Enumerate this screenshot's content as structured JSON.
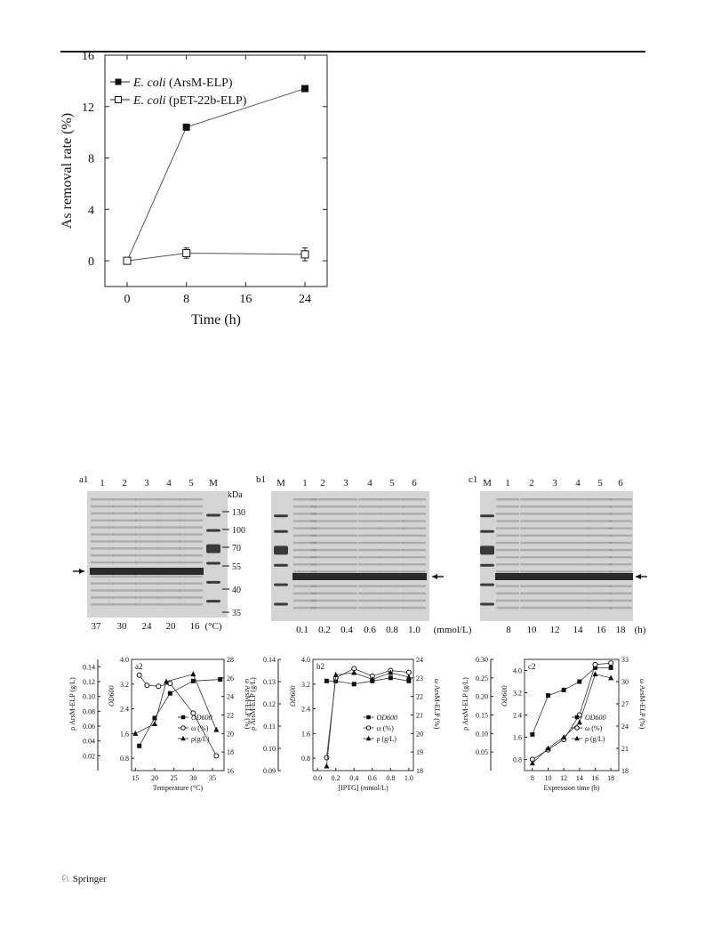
{
  "footer": {
    "publisher": "Springer",
    "logo_icon": "springer-horse-icon"
  },
  "chart_data": [
    {
      "id": "main",
      "type": "line",
      "ylabel": "As removal rate (%)",
      "xlabel": "Time (h)",
      "xlim": [
        -3,
        27
      ],
      "ylim": [
        -2,
        16
      ],
      "xticks": [
        "0",
        "8",
        "16",
        "24"
      ],
      "yticks": [
        "0",
        "4",
        "8",
        "12",
        "16"
      ],
      "series": [
        {
          "name_italic": "E. coli",
          "name_rest": "(ArsM-ELP)",
          "marker": "filled-square",
          "x": [
            0,
            8,
            24
          ],
          "y": [
            0,
            10.4,
            13.4
          ],
          "err": [
            0,
            0,
            0
          ]
        },
        {
          "name_italic": "E. coli",
          "name_rest": "(pET-22b-ELP)",
          "marker": "open-square",
          "x": [
            0,
            8,
            24
          ],
          "y": [
            0,
            0.6,
            0.5
          ],
          "err": [
            0,
            0.4,
            0.5
          ]
        }
      ]
    },
    {
      "id": "a2",
      "type": "line",
      "panel_label": "a2",
      "xlabel": "Temperature (°C)",
      "xlim": [
        14,
        38
      ],
      "xticks": [
        "15",
        "20",
        "25",
        "30",
        "35"
      ],
      "left_axis": {
        "label": "ρ ArsM-ELP (g/L)",
        "lim": [
          0,
          0.15
        ],
        "ticks": [
          "0.02",
          "0.04",
          "0.06",
          "0.08",
          "0.10",
          "0.12",
          "0.14"
        ]
      },
      "inner_axis": {
        "label": "OD600",
        "lim": [
          0.4,
          4.0
        ],
        "ticks": [
          "0.8",
          "1.6",
          "2.4",
          "3.2",
          "4.0"
        ]
      },
      "right_axis": {
        "label": "ω ArsM-ELP (%)",
        "lim": [
          16,
          28
        ],
        "ticks": [
          "16",
          "18",
          "20",
          "22",
          "24",
          "26",
          "28"
        ]
      },
      "legend": [
        "OD600",
        "ω (%)",
        "ρ(g/L)"
      ],
      "series": [
        {
          "name": "OD600",
          "marker": "filled-square",
          "x": [
            16,
            20,
            24,
            30,
            37
          ],
          "y_od": [
            1.2,
            2.1,
            2.9,
            3.3,
            3.35
          ]
        },
        {
          "name": "ω (%)",
          "marker": "open-circle",
          "x": [
            16,
            18,
            21,
            24,
            30,
            36
          ],
          "y_w": [
            26.3,
            25.2,
            25.1,
            25.4,
            22.2,
            17.6
          ]
        },
        {
          "name": "ρ(g/L)",
          "marker": "filled-triangle",
          "x": [
            15,
            20,
            23,
            30,
            36
          ],
          "y_rho": [
            0.05,
            0.063,
            0.12,
            0.13,
            0.055
          ]
        }
      ]
    },
    {
      "id": "b2",
      "type": "line",
      "panel_label": "b2",
      "xlabel": "[IPTG] (mmol/L)",
      "xlim": [
        -0.05,
        1.05
      ],
      "xticks": [
        "0.0",
        "0.2",
        "0.4",
        "0.6",
        "0.8",
        "1.0"
      ],
      "left_axis": {
        "label": "ρ ArsM-ELP (g/L)",
        "lim": [
          0.09,
          0.14
        ],
        "ticks": [
          "0.09",
          "0.10",
          "0.11",
          "0.12",
          "0.13",
          "0.14"
        ]
      },
      "inner_axis": {
        "label": "OD600",
        "lim": [
          0.4,
          4.0
        ],
        "ticks": [
          "0.8",
          "1.6",
          "2.4",
          "3.2",
          "4.0"
        ]
      },
      "right_axis": {
        "label": "ω ArsM-ELP (%)",
        "lim": [
          18,
          24
        ],
        "ticks": [
          "18",
          "19",
          "20",
          "21",
          "22",
          "23",
          "24"
        ]
      },
      "legend": [
        "OD600",
        "ω (%)",
        "ρ (g/L)"
      ],
      "series": [
        {
          "name": "OD600",
          "marker": "filled-square",
          "x": [
            0.1,
            0.2,
            0.4,
            0.6,
            0.8,
            1.0
          ],
          "y_od": [
            3.3,
            3.3,
            3.2,
            3.3,
            3.4,
            3.3
          ]
        },
        {
          "name": "ω (%)",
          "marker": "open-circle",
          "x": [
            0.1,
            0.2,
            0.4,
            0.6,
            0.8,
            1.0
          ],
          "y_w": [
            18.7,
            23.0,
            23.5,
            23.1,
            23.4,
            23.3
          ]
        },
        {
          "name": "ρ (g/L)",
          "marker": "filled-triangle",
          "x": [
            0.1,
            0.2,
            0.4,
            0.6,
            0.8,
            1.0
          ],
          "y_rho": [
            0.092,
            0.133,
            0.134,
            0.131,
            0.134,
            0.132
          ]
        }
      ]
    },
    {
      "id": "c2",
      "type": "line",
      "panel_label": "c2",
      "xlabel": "Expression time (h)",
      "xlim": [
        7,
        19
      ],
      "xticks": [
        "8",
        "10",
        "12",
        "14",
        "16",
        "18"
      ],
      "left_axis": {
        "label": "ρ ArsM-ELP (g/L)",
        "lim": [
          0,
          0.3
        ],
        "ticks": [
          "0.05",
          "0.10",
          "0.15",
          "0.20",
          "0.25",
          "0.30"
        ]
      },
      "inner_axis": {
        "label": "OD600",
        "lim": [
          0.4,
          4.4
        ],
        "ticks": [
          "0.8",
          "1.6",
          "2.4",
          "3.2",
          "4.0"
        ]
      },
      "right_axis": {
        "label": "ω ArsM-ELP (%)",
        "lim": [
          18,
          33
        ],
        "ticks": [
          "18",
          "21",
          "24",
          "27",
          "30",
          "33"
        ]
      },
      "legend": [
        "OD600",
        "ω (%)",
        "ρ (g/L)"
      ],
      "series": [
        {
          "name": "OD600",
          "marker": "filled-square",
          "x": [
            8,
            10,
            12,
            14,
            16,
            18
          ],
          "y_od": [
            1.7,
            3.1,
            3.3,
            3.6,
            4.1,
            4.1
          ]
        },
        {
          "name": "ω (%)",
          "marker": "open-circle",
          "x": [
            8,
            10,
            12,
            14,
            16,
            18
          ],
          "y_w": [
            19.5,
            20.8,
            22.2,
            25.5,
            32.3,
            32.5
          ]
        },
        {
          "name": "ρ (g/L)",
          "marker": "filled-triangle",
          "x": [
            8,
            10,
            12,
            14,
            16,
            18
          ],
          "y_rho": [
            0.02,
            0.06,
            0.09,
            0.13,
            0.26,
            0.25
          ]
        }
      ]
    }
  ],
  "gels": [
    {
      "id": "a1",
      "panel_label": "a1",
      "lane_labels": [
        "1",
        "2",
        "3",
        "4",
        "5",
        "M"
      ],
      "marker_unit": "kDa",
      "marker_sizes": [
        "130",
        "100",
        "70",
        "55",
        "40",
        "35"
      ],
      "bottom_labels": [
        "37",
        "30",
        "24",
        "20",
        "16"
      ],
      "bottom_unit": "(°C)"
    },
    {
      "id": "b1",
      "panel_label": "b1",
      "lane_labels": [
        "M",
        "1",
        "2",
        "3",
        "4",
        "5",
        "6"
      ],
      "bottom_labels": [
        "0.1",
        "0.2",
        "0.4",
        "0.6",
        "0.8",
        "1.0"
      ],
      "bottom_unit": "(mmol/L)"
    },
    {
      "id": "c1",
      "panel_label": "c1",
      "lane_labels": [
        "M",
        "1",
        "2",
        "3",
        "4",
        "5",
        "6"
      ],
      "bottom_labels": [
        "8",
        "10",
        "12",
        "14",
        "16",
        "18"
      ],
      "bottom_unit": "(h)"
    }
  ]
}
